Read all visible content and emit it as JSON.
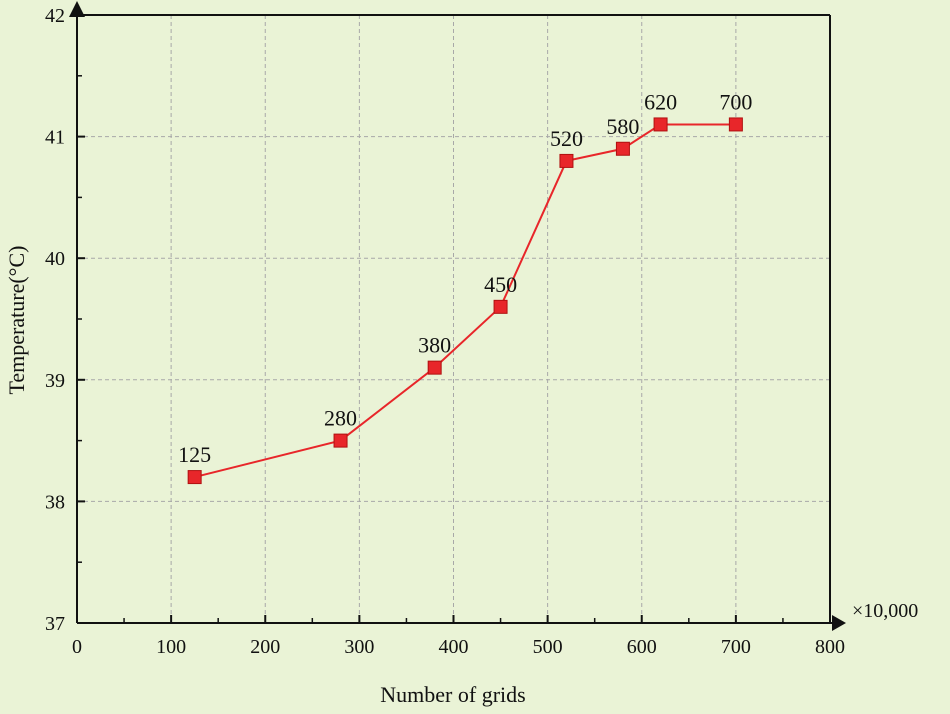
{
  "chart_data": {
    "type": "line",
    "xlabel": "Number of grids",
    "ylabel": "Temperature(°C)",
    "x_unit_label": "×10,000",
    "xlim": [
      0,
      800
    ],
    "ylim": [
      37,
      42
    ],
    "x_ticks": [
      0,
      100,
      200,
      300,
      400,
      500,
      600,
      700,
      800
    ],
    "y_ticks": [
      37,
      38,
      39,
      40,
      41,
      42
    ],
    "grid": true,
    "series": [
      {
        "color": "#e8262a",
        "marker": "square",
        "x": [
          125,
          280,
          380,
          450,
          520,
          580,
          620,
          700
        ],
        "y": [
          38.2,
          38.5,
          39.1,
          39.6,
          40.8,
          40.9,
          41.1,
          41.1
        ],
        "data_labels": [
          "125",
          "280",
          "380",
          "450",
          "520",
          "580",
          "620",
          "700"
        ]
      }
    ]
  }
}
